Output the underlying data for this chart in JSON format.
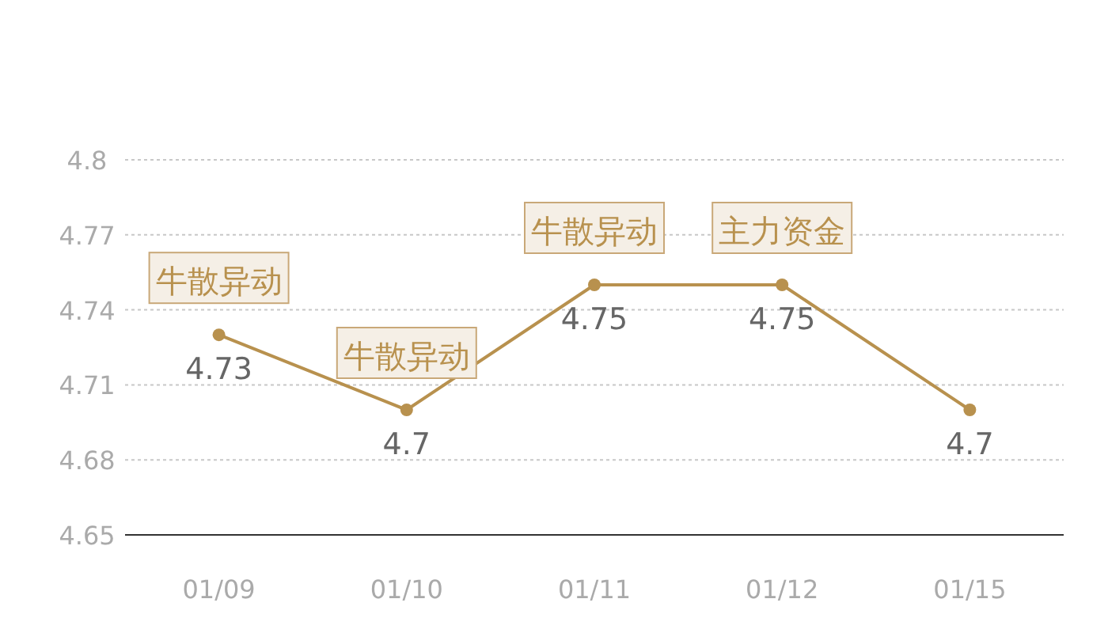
{
  "chart_data": {
    "type": "line",
    "categories": [
      "01/09",
      "01/10",
      "01/11",
      "01/12",
      "01/15"
    ],
    "series": [
      {
        "color": "#b8914e",
        "values": [
          4.73,
          4.7,
          4.75,
          4.75,
          4.7
        ]
      }
    ],
    "ylim": [
      4.65,
      4.8
    ],
    "yticks": [
      4.65,
      4.68,
      4.71,
      4.74,
      4.77,
      4.8
    ],
    "grid": "y",
    "marker": "circle",
    "data_labels": true,
    "annotations": [
      {
        "text": "牛散异动",
        "x": "01/09",
        "y": 4.73
      },
      {
        "text": "牛散异动",
        "x": "01/10",
        "y": 4.7
      },
      {
        "text": "牛散异动",
        "x": "01/11",
        "y": 4.75
      },
      {
        "text": "主力资金",
        "x": "01/12",
        "y": 4.75
      }
    ]
  }
}
